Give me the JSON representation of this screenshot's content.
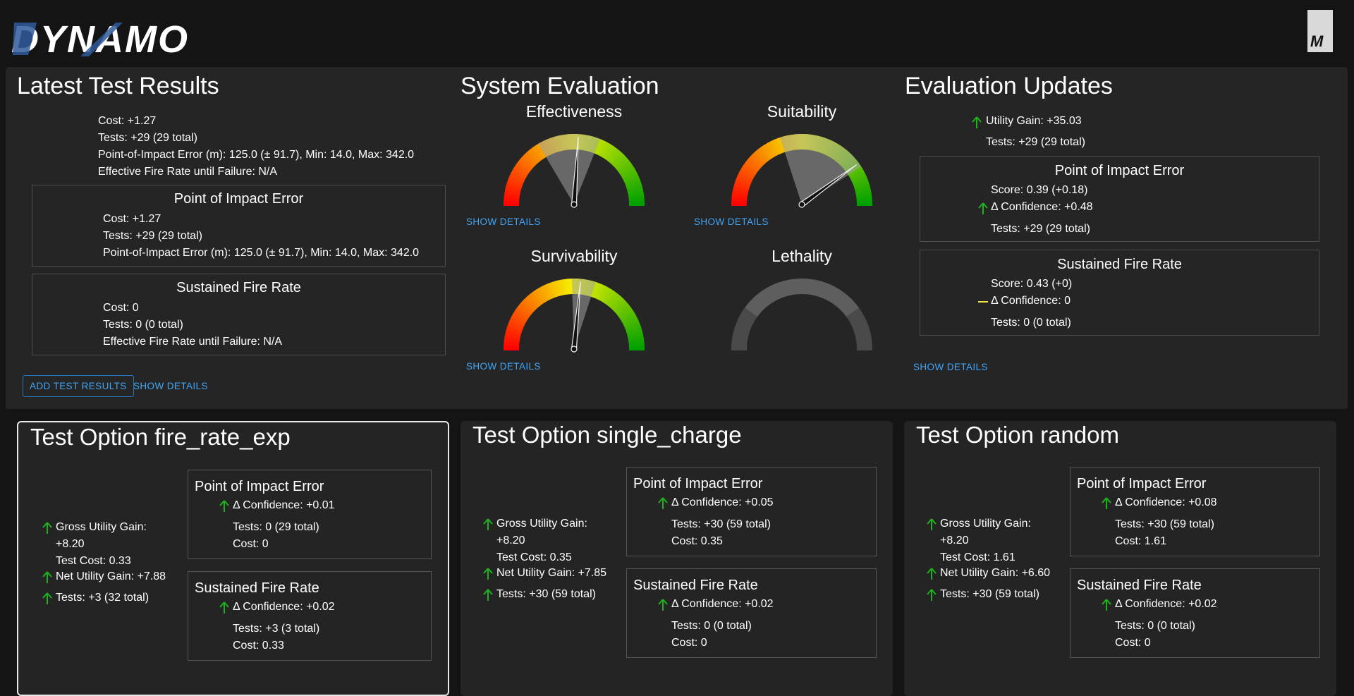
{
  "header": {
    "logo_text": "DYNAMO",
    "corner_logo_text": "M"
  },
  "latest": {
    "title": "Latest Test Results",
    "summary": [
      "Cost: +1.27",
      "Tests: +29 (29 total)",
      "Point-of-Impact Error (m): 125.0 (± 91.7), Min: 14.0, Max: 342.0",
      "Effective Fire Rate until Failure: N/A"
    ],
    "poi": {
      "title": "Point of Impact Error",
      "lines": [
        "Cost: +1.27",
        "Tests: +29 (29 total)",
        "Point-of-Impact Error (m): 125.0 (± 91.7), Min: 14.0, Max: 342.0"
      ]
    },
    "sfr": {
      "title": "Sustained Fire Rate",
      "lines": [
        "Cost: 0",
        "Tests: 0 (0 total)",
        "Effective Fire Rate until Failure: N/A"
      ]
    },
    "add_button": "ADD TEST RESULTS",
    "show_details": "SHOW DETAILS"
  },
  "system": {
    "title": "System Evaluation",
    "gauges": [
      {
        "label": "Effectiveness",
        "value": 0.52,
        "band_lo": 0.33,
        "band_hi": 0.62,
        "enabled": true,
        "link": "SHOW DETAILS"
      },
      {
        "label": "Suitability",
        "value": 0.8,
        "band_lo": 0.4,
        "band_hi": 0.82,
        "enabled": true,
        "link": "SHOW DETAILS"
      },
      {
        "label": "Survivability",
        "value": 0.53,
        "band_lo": 0.49,
        "band_hi": 0.6,
        "enabled": true,
        "link": "SHOW DETAILS"
      },
      {
        "label": "Lethality",
        "value": null,
        "enabled": false,
        "link": ""
      }
    ],
    "colors": {
      "low": "#ff0000",
      "mid": "#f5f500",
      "high": "#00a000",
      "disabled": "#555555"
    }
  },
  "updates": {
    "title": "Evaluation Updates",
    "utility_gain": "Utility Gain: +35.03",
    "tests": "Tests: +29 (29 total)",
    "poi": {
      "title": "Point of Impact Error",
      "score": "Score: 0.39 (+0.18)",
      "confidence": "Δ Confidence: +0.48",
      "tests": "Tests: +29 (29 total)"
    },
    "sfr": {
      "title": "Sustained Fire Rate",
      "score": "Score: 0.43 (+0)",
      "confidence": "Δ Confidence: 0",
      "tests": "Tests: 0 (0 total)"
    },
    "show_details": "SHOW DETAILS"
  },
  "options": [
    {
      "title": "Test Option fire_rate_exp",
      "selected": true,
      "gross": "Gross Utility Gain:",
      "gross_val": "+8.20",
      "cost": "Test Cost: 0.33",
      "net": "Net Utility Gain: +7.88",
      "tests": "Tests: +3 (32 total)",
      "poi": {
        "title": "Point of Impact Error",
        "confidence": "Δ Confidence: +0.01",
        "tests": "Tests: 0 (29 total)",
        "cost": "Cost: 0"
      },
      "sfr": {
        "title": "Sustained Fire Rate",
        "confidence": "Δ Confidence: +0.02",
        "tests": "Tests: +3 (3 total)",
        "cost": "Cost: 0.33"
      }
    },
    {
      "title": "Test Option single_charge",
      "selected": false,
      "gross": "Gross Utility Gain:",
      "gross_val": "+8.20",
      "cost": "Test Cost: 0.35",
      "net": "Net Utility Gain: +7.85",
      "tests": "Tests: +30 (59 total)",
      "poi": {
        "title": "Point of Impact Error",
        "confidence": "Δ Confidence: +0.05",
        "tests": "Tests: +30 (59 total)",
        "cost": "Cost: 0.35"
      },
      "sfr": {
        "title": "Sustained Fire Rate",
        "confidence": "Δ Confidence: +0.02",
        "tests": "Tests: 0 (0 total)",
        "cost": "Cost: 0"
      }
    },
    {
      "title": "Test Option random",
      "selected": false,
      "gross": "Gross Utility Gain:",
      "gross_val": "+8.20",
      "cost": "Test Cost: 1.61",
      "net": "Net Utility Gain: +6.60",
      "tests": "Tests: +30 (59 total)",
      "poi": {
        "title": "Point of Impact Error",
        "confidence": "Δ Confidence: +0.08",
        "tests": "Tests: +30 (59 total)",
        "cost": "Cost: 1.61"
      },
      "sfr": {
        "title": "Sustained Fire Rate",
        "confidence": "Δ Confidence: +0.02",
        "tests": "Tests: 0 (0 total)",
        "cost": "Cost: 0"
      }
    }
  ],
  "icons": {
    "up": "arrow-up-icon",
    "flat": "dash-icon"
  },
  "accent": {
    "up_arrow": "#1db31d",
    "flat_dash": "#f2e33a",
    "link": "#42a5f5"
  }
}
